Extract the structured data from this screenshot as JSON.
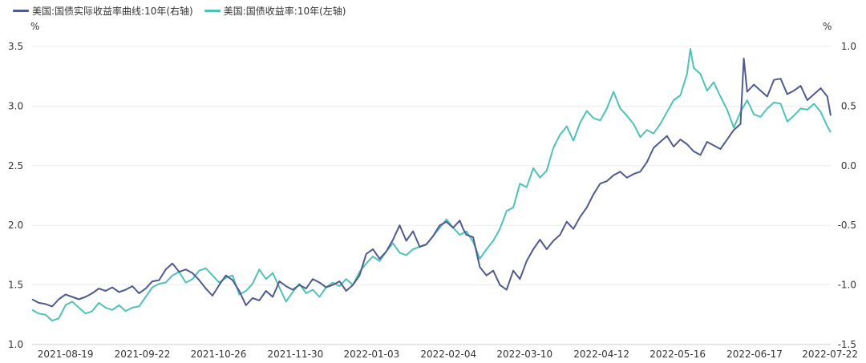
{
  "chart_data": {
    "type": "line",
    "left_unit": "%",
    "right_unit": "%",
    "x_tick_labels": [
      "2021-08-19",
      "2021-09-22",
      "2021-10-26",
      "2021-11-30",
      "2022-01-03",
      "2022-02-04",
      "2022-03-10",
      "2022-04-12",
      "2022-05-16",
      "2022-06-17",
      "2022-07-22"
    ],
    "x_tick_positions": [
      0.05,
      0.165,
      0.279,
      0.394,
      0.508,
      0.623,
      0.737,
      0.852,
      0.966,
      1.081,
      1.195
    ],
    "x_range": [
      0,
      1.195
    ],
    "left_axis": {
      "ticks": [
        "1.0",
        "1.5",
        "2.0",
        "2.5",
        "3.0",
        "3.5"
      ],
      "ylim": [
        1.0,
        3.5
      ]
    },
    "right_axis": {
      "ticks": [
        "-1.5",
        "-1.0",
        "-0.5",
        "0.0",
        "0.5",
        "1.0"
      ],
      "ylim": [
        -1.5,
        1.0
      ]
    },
    "legend_position": "top-left",
    "series": [
      {
        "name": "美国:国债实际收益率曲线:10年(右轴)",
        "axis": "right",
        "color": "#4f5a8f",
        "points": [
          [
            0,
            -1.12
          ],
          [
            0.01,
            -1.15
          ],
          [
            0.02,
            -1.16
          ],
          [
            0.03,
            -1.18
          ],
          [
            0.04,
            -1.12
          ],
          [
            0.05,
            -1.08
          ],
          [
            0.06,
            -1.1
          ],
          [
            0.07,
            -1.12
          ],
          [
            0.08,
            -1.1
          ],
          [
            0.09,
            -1.07
          ],
          [
            0.1,
            -1.03
          ],
          [
            0.11,
            -1.05
          ],
          [
            0.12,
            -1.02
          ],
          [
            0.13,
            -1.06
          ],
          [
            0.14,
            -1.04
          ],
          [
            0.15,
            -1.01
          ],
          [
            0.16,
            -1.07
          ],
          [
            0.17,
            -1.03
          ],
          [
            0.18,
            -0.97
          ],
          [
            0.19,
            -0.96
          ],
          [
            0.2,
            -0.87
          ],
          [
            0.21,
            -0.82
          ],
          [
            0.22,
            -0.89
          ],
          [
            0.23,
            -0.87
          ],
          [
            0.24,
            -0.9
          ],
          [
            0.25,
            -0.96
          ],
          [
            0.26,
            -1.03
          ],
          [
            0.27,
            -1.09
          ],
          [
            0.28,
            -1.0
          ],
          [
            0.29,
            -0.92
          ],
          [
            0.3,
            -0.96
          ],
          [
            0.31,
            -1.05
          ],
          [
            0.32,
            -1.17
          ],
          [
            0.33,
            -1.11
          ],
          [
            0.34,
            -1.13
          ],
          [
            0.35,
            -1.05
          ],
          [
            0.36,
            -1.1
          ],
          [
            0.37,
            -0.97
          ],
          [
            0.38,
            -1.01
          ],
          [
            0.39,
            -1.04
          ],
          [
            0.4,
            -1.0
          ],
          [
            0.41,
            -1.03
          ],
          [
            0.42,
            -0.95
          ],
          [
            0.43,
            -0.98
          ],
          [
            0.44,
            -1.02
          ],
          [
            0.45,
            -1.0
          ],
          [
            0.46,
            -0.97
          ],
          [
            0.47,
            -1.05
          ],
          [
            0.48,
            -1.0
          ],
          [
            0.49,
            -0.92
          ],
          [
            0.5,
            -0.74
          ],
          [
            0.51,
            -0.7
          ],
          [
            0.52,
            -0.78
          ],
          [
            0.53,
            -0.72
          ],
          [
            0.54,
            -0.62
          ],
          [
            0.55,
            -0.5
          ],
          [
            0.56,
            -0.63
          ],
          [
            0.57,
            -0.55
          ],
          [
            0.58,
            -0.68
          ],
          [
            0.59,
            -0.66
          ],
          [
            0.6,
            -0.59
          ],
          [
            0.61,
            -0.5
          ],
          [
            0.62,
            -0.47
          ],
          [
            0.63,
            -0.52
          ],
          [
            0.64,
            -0.46
          ],
          [
            0.645,
            -0.53
          ],
          [
            0.65,
            -0.58
          ],
          [
            0.66,
            -0.6
          ],
          [
            0.67,
            -0.85
          ],
          [
            0.68,
            -0.92
          ],
          [
            0.69,
            -0.88
          ],
          [
            0.7,
            -1.0
          ],
          [
            0.71,
            -1.04
          ],
          [
            0.72,
            -0.88
          ],
          [
            0.73,
            -0.95
          ],
          [
            0.74,
            -0.8
          ],
          [
            0.75,
            -0.7
          ],
          [
            0.76,
            -0.62
          ],
          [
            0.77,
            -0.7
          ],
          [
            0.78,
            -0.63
          ],
          [
            0.79,
            -0.58
          ],
          [
            0.8,
            -0.47
          ],
          [
            0.81,
            -0.53
          ],
          [
            0.82,
            -0.43
          ],
          [
            0.83,
            -0.35
          ],
          [
            0.84,
            -0.24
          ],
          [
            0.85,
            -0.15
          ],
          [
            0.86,
            -0.13
          ],
          [
            0.87,
            -0.08
          ],
          [
            0.88,
            -0.05
          ],
          [
            0.89,
            -0.1
          ],
          [
            0.9,
            -0.07
          ],
          [
            0.91,
            -0.05
          ],
          [
            0.92,
            0.03
          ],
          [
            0.93,
            0.15
          ],
          [
            0.94,
            0.2
          ],
          [
            0.95,
            0.25
          ],
          [
            0.96,
            0.16
          ],
          [
            0.97,
            0.22
          ],
          [
            0.98,
            0.18
          ],
          [
            0.99,
            0.12
          ],
          [
            1.0,
            0.09
          ],
          [
            1.01,
            0.2
          ],
          [
            1.02,
            0.17
          ],
          [
            1.03,
            0.14
          ],
          [
            1.04,
            0.22
          ],
          [
            1.05,
            0.3
          ],
          [
            1.06,
            0.35
          ],
          [
            1.065,
            0.9
          ],
          [
            1.07,
            0.62
          ],
          [
            1.08,
            0.68
          ],
          [
            1.09,
            0.63
          ],
          [
            1.1,
            0.58
          ],
          [
            1.11,
            0.72
          ],
          [
            1.12,
            0.73
          ],
          [
            1.13,
            0.6
          ],
          [
            1.14,
            0.63
          ],
          [
            1.15,
            0.67
          ],
          [
            1.16,
            0.55
          ],
          [
            1.17,
            0.6
          ],
          [
            1.18,
            0.65
          ],
          [
            1.19,
            0.58
          ],
          [
            1.195,
            0.42
          ]
        ]
      },
      {
        "name": "美国:国债收益率:10年(左轴)",
        "axis": "left",
        "color": "#4fc2b6",
        "points": [
          [
            0,
            1.29
          ],
          [
            0.01,
            1.26
          ],
          [
            0.02,
            1.25
          ],
          [
            0.03,
            1.2
          ],
          [
            0.04,
            1.22
          ],
          [
            0.05,
            1.33
          ],
          [
            0.06,
            1.36
          ],
          [
            0.07,
            1.31
          ],
          [
            0.08,
            1.26
          ],
          [
            0.09,
            1.28
          ],
          [
            0.1,
            1.35
          ],
          [
            0.11,
            1.31
          ],
          [
            0.12,
            1.29
          ],
          [
            0.13,
            1.33
          ],
          [
            0.14,
            1.28
          ],
          [
            0.15,
            1.31
          ],
          [
            0.16,
            1.32
          ],
          [
            0.17,
            1.4
          ],
          [
            0.18,
            1.48
          ],
          [
            0.19,
            1.51
          ],
          [
            0.2,
            1.52
          ],
          [
            0.21,
            1.58
          ],
          [
            0.22,
            1.61
          ],
          [
            0.23,
            1.52
          ],
          [
            0.24,
            1.55
          ],
          [
            0.25,
            1.62
          ],
          [
            0.26,
            1.64
          ],
          [
            0.27,
            1.58
          ],
          [
            0.28,
            1.52
          ],
          [
            0.29,
            1.56
          ],
          [
            0.3,
            1.58
          ],
          [
            0.31,
            1.42
          ],
          [
            0.32,
            1.45
          ],
          [
            0.33,
            1.51
          ],
          [
            0.34,
            1.63
          ],
          [
            0.35,
            1.55
          ],
          [
            0.36,
            1.6
          ],
          [
            0.37,
            1.48
          ],
          [
            0.38,
            1.36
          ],
          [
            0.39,
            1.44
          ],
          [
            0.4,
            1.51
          ],
          [
            0.41,
            1.43
          ],
          [
            0.42,
            1.46
          ],
          [
            0.43,
            1.4
          ],
          [
            0.44,
            1.48
          ],
          [
            0.45,
            1.52
          ],
          [
            0.46,
            1.49
          ],
          [
            0.47,
            1.55
          ],
          [
            0.48,
            1.5
          ],
          [
            0.49,
            1.61
          ],
          [
            0.5,
            1.68
          ],
          [
            0.51,
            1.74
          ],
          [
            0.52,
            1.7
          ],
          [
            0.53,
            1.78
          ],
          [
            0.54,
            1.85
          ],
          [
            0.55,
            1.77
          ],
          [
            0.56,
            1.75
          ],
          [
            0.57,
            1.8
          ],
          [
            0.58,
            1.82
          ],
          [
            0.59,
            1.84
          ],
          [
            0.6,
            1.91
          ],
          [
            0.61,
            1.98
          ],
          [
            0.62,
            2.05
          ],
          [
            0.63,
            1.98
          ],
          [
            0.64,
            1.92
          ],
          [
            0.65,
            1.95
          ],
          [
            0.66,
            1.86
          ],
          [
            0.67,
            1.72
          ],
          [
            0.68,
            1.8
          ],
          [
            0.69,
            1.87
          ],
          [
            0.7,
            1.97
          ],
          [
            0.71,
            2.12
          ],
          [
            0.72,
            2.15
          ],
          [
            0.73,
            2.35
          ],
          [
            0.74,
            2.32
          ],
          [
            0.75,
            2.48
          ],
          [
            0.76,
            2.4
          ],
          [
            0.77,
            2.46
          ],
          [
            0.78,
            2.65
          ],
          [
            0.79,
            2.76
          ],
          [
            0.8,
            2.83
          ],
          [
            0.81,
            2.71
          ],
          [
            0.82,
            2.86
          ],
          [
            0.83,
            2.96
          ],
          [
            0.84,
            2.9
          ],
          [
            0.85,
            2.88
          ],
          [
            0.86,
            2.98
          ],
          [
            0.87,
            3.12
          ],
          [
            0.88,
            2.98
          ],
          [
            0.89,
            2.92
          ],
          [
            0.9,
            2.85
          ],
          [
            0.91,
            2.74
          ],
          [
            0.92,
            2.8
          ],
          [
            0.93,
            2.77
          ],
          [
            0.94,
            2.85
          ],
          [
            0.95,
            2.95
          ],
          [
            0.96,
            3.05
          ],
          [
            0.97,
            3.09
          ],
          [
            0.98,
            3.27
          ],
          [
            0.985,
            3.48
          ],
          [
            0.99,
            3.32
          ],
          [
            1.0,
            3.27
          ],
          [
            1.01,
            3.13
          ],
          [
            1.02,
            3.2
          ],
          [
            1.03,
            3.08
          ],
          [
            1.04,
            2.97
          ],
          [
            1.05,
            2.82
          ],
          [
            1.06,
            2.95
          ],
          [
            1.07,
            3.05
          ],
          [
            1.08,
            2.93
          ],
          [
            1.09,
            2.91
          ],
          [
            1.1,
            2.98
          ],
          [
            1.11,
            3.03
          ],
          [
            1.12,
            3.02
          ],
          [
            1.13,
            2.87
          ],
          [
            1.14,
            2.92
          ],
          [
            1.15,
            2.98
          ],
          [
            1.16,
            2.97
          ],
          [
            1.17,
            3.02
          ],
          [
            1.18,
            2.95
          ],
          [
            1.19,
            2.83
          ],
          [
            1.195,
            2.78
          ]
        ]
      }
    ]
  }
}
